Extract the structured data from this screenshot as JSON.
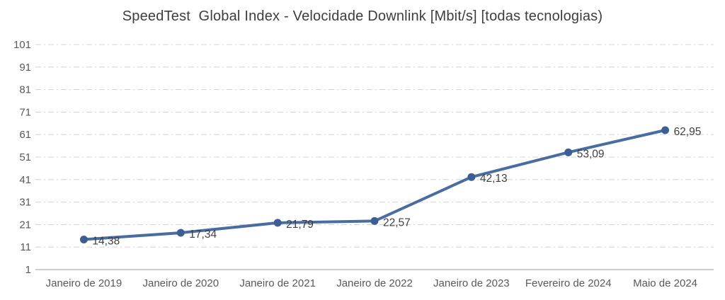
{
  "chart_data": {
    "type": "line",
    "title": "SpeedTest  Global Index - Velocidade Downlink [Mbit/s] [todas tecnologias)",
    "categories": [
      "Janeiro de 2019",
      "Janeiro de 2020",
      "Janeiro de 2021",
      "Janeiro de 2022",
      "Janeiro de 2023",
      "Fevereiro de 2024",
      "Maio de 2024"
    ],
    "values": [
      14.38,
      17.34,
      21.79,
      22.57,
      42.13,
      53.09,
      62.95
    ],
    "point_labels": [
      "14,38",
      "17,34",
      "21,79",
      "22,57",
      "42,13",
      "53,09",
      "62,95"
    ],
    "xlabel": "",
    "ylabel": "",
    "ylim": [
      1,
      101
    ],
    "yticks": [
      1,
      11,
      21,
      31,
      41,
      51,
      61,
      71,
      81,
      91,
      101
    ],
    "grid": "horizontal-dashed",
    "legend": "none",
    "colors": {
      "line": "#4a6da1",
      "marker": "#3c5e94",
      "grid": "#d6d6d6",
      "axis": "#bdbdbd",
      "title_text": "#3d3d3d",
      "tick_text": "#595959",
      "label_text": "#3f3f3f",
      "background": "#ffffff"
    }
  }
}
